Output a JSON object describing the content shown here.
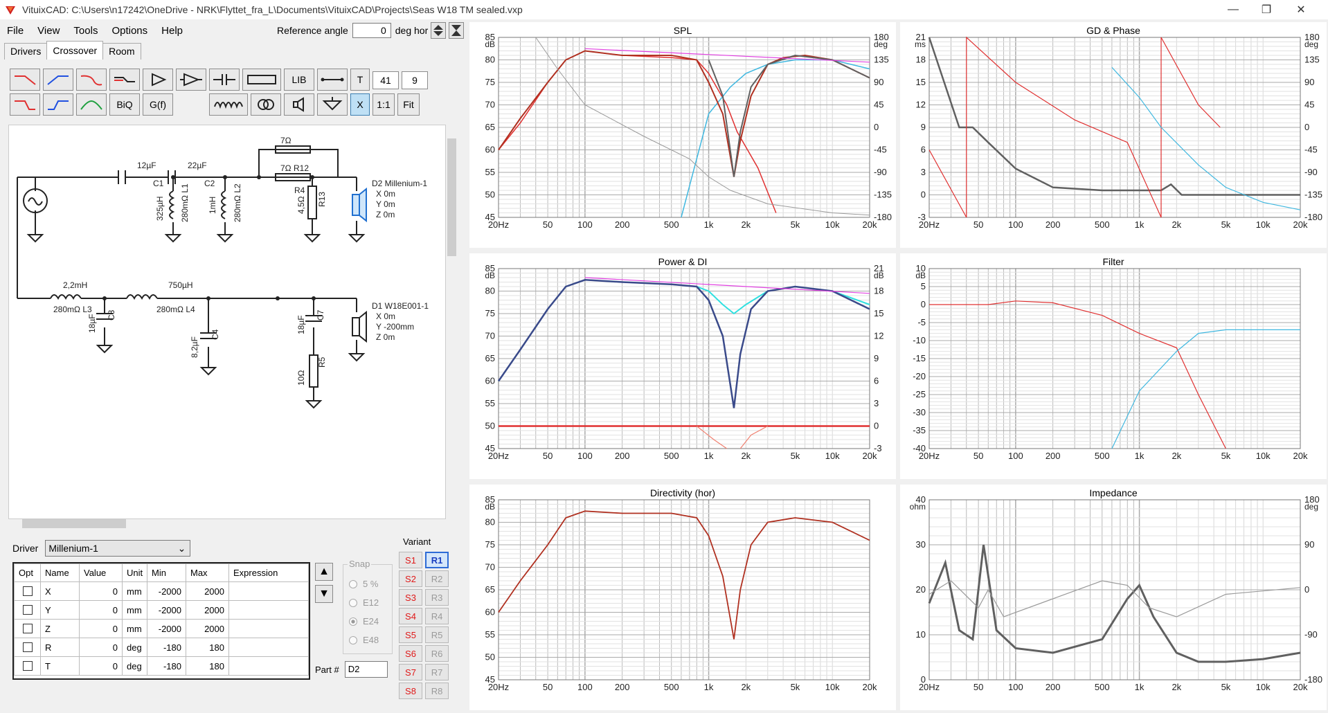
{
  "window": {
    "title": "VituixCAD: C:\\Users\\n17242\\OneDrive - NRK\\Flyttet_fra_L\\Documents\\VituixCAD\\Projects\\Seas W18 TM sealed.vxp"
  },
  "menu": [
    "File",
    "View",
    "Tools",
    "Options",
    "Help"
  ],
  "reference": {
    "label": "Reference angle",
    "value": "0",
    "unit": "deg hor"
  },
  "tabs": [
    "Drivers",
    "Crossover",
    "Room"
  ],
  "toolbar": {
    "lib": "LIB",
    "t": "T",
    "biq": "BiQ",
    "gf": "G(f)",
    "x": "X",
    "one": "1:1",
    "fit": "Fit",
    "n1": "41",
    "n2": "9"
  },
  "schematic": {
    "c1": "12µF",
    "c1n": "C1",
    "c2": "22µF",
    "c2n": "C2",
    "l1": "325µH",
    "l1n": "280mΩ L1",
    "l2": "1mH",
    "l2n": "280mΩ L2",
    "r_top": "7Ω",
    "r12": "7Ω R12",
    "r4": "R4",
    "r4v": "4,5Ω",
    "r13": "R13",
    "d2": "D2 Millenium-1",
    "d2x": "X 0m",
    "d2y": "Y 0m",
    "d2z": "Z 0m",
    "l3": "2,2mH",
    "l3n": "280mΩ L3",
    "c3": "C3",
    "c3v": "18µF",
    "l4": "750µH",
    "l4n": "280mΩ L4",
    "c4": "C4",
    "c4v": "8,2µF",
    "c7": "C7",
    "c7v": "18µF",
    "r5": "R5",
    "r5v": "10Ω",
    "d1": "D1 W18E001-1",
    "d1x": "X 0m",
    "d1y": "Y -200mm",
    "d1z": "Z 0m"
  },
  "driver": {
    "label": "Driver",
    "selected": "Millenium-1"
  },
  "table": {
    "headers": [
      "Opt",
      "Name",
      "Value",
      "Unit",
      "Min",
      "Max",
      "Expression"
    ],
    "rows": [
      {
        "name": "X",
        "value": "0",
        "unit": "mm",
        "min": "-2000",
        "max": "2000"
      },
      {
        "name": "Y",
        "value": "0",
        "unit": "mm",
        "min": "-2000",
        "max": "2000"
      },
      {
        "name": "Z",
        "value": "0",
        "unit": "mm",
        "min": "-2000",
        "max": "2000"
      },
      {
        "name": "R",
        "value": "0",
        "unit": "deg",
        "min": "-180",
        "max": "180"
      },
      {
        "name": "T",
        "value": "0",
        "unit": "deg",
        "min": "-180",
        "max": "180"
      }
    ]
  },
  "snap": {
    "label": "Snap",
    "options": [
      "5 %",
      "E12",
      "E24",
      "E48"
    ],
    "selected": "E24"
  },
  "part": {
    "label": "Part #",
    "value": "D2"
  },
  "variant": {
    "label": "Variant",
    "s": [
      "S1",
      "S2",
      "S3",
      "S4",
      "S5",
      "S6",
      "S7",
      "S8"
    ],
    "r": [
      "R1",
      "R2",
      "R3",
      "R4",
      "R5",
      "R6",
      "R7",
      "R8"
    ],
    "active": "R1"
  },
  "colors": {
    "red": "#e03030",
    "blue": "#40b8e0",
    "grey": "#606060",
    "magenta": "#e040e0",
    "darkred": "#b03020",
    "navy": "#3a4a8a"
  },
  "charts": [
    {
      "id": "spl",
      "title": "SPL",
      "yl_unit": "dB",
      "yr_unit": "deg",
      "yl": [
        "85",
        "80",
        "75",
        "70",
        "65",
        "60",
        "55",
        "50",
        "45"
      ],
      "yr": [
        "180",
        "135",
        "90",
        "45",
        "0",
        "-45",
        "-90",
        "-135",
        "-180"
      ]
    },
    {
      "id": "gd",
      "title": "GD & Phase",
      "yl_unit": "ms",
      "yr_unit": "deg",
      "yl": [
        "21",
        "18",
        "15",
        "12",
        "9",
        "6",
        "3",
        "0",
        "-3"
      ],
      "yr": [
        "180",
        "135",
        "90",
        "45",
        "0",
        "-45",
        "-90",
        "-135",
        "-180"
      ]
    },
    {
      "id": "pdi",
      "title": "Power & DI",
      "yl_unit": "dB",
      "yr_unit": "dB",
      "yl": [
        "85",
        "80",
        "75",
        "70",
        "65",
        "60",
        "55",
        "50",
        "45"
      ],
      "yr": [
        "21",
        "18",
        "15",
        "12",
        "9",
        "6",
        "3",
        "0",
        "-3"
      ]
    },
    {
      "id": "filter",
      "title": "Filter",
      "yl_unit": "dB",
      "yr_unit": "",
      "yl": [
        "10",
        "5",
        "0",
        "-5",
        "-10",
        "-15",
        "-20",
        "-25",
        "-30",
        "-35",
        "-40"
      ],
      "yr": []
    },
    {
      "id": "dir",
      "title": "Directivity (hor)",
      "yl_unit": "dB",
      "yr_unit": "",
      "yl": [
        "85",
        "80",
        "75",
        "70",
        "65",
        "60",
        "55",
        "50",
        "45"
      ],
      "yr": []
    },
    {
      "id": "imp",
      "title": "Impedance",
      "yl_unit": "ohm",
      "yr_unit": "deg",
      "yl": [
        "40",
        "30",
        "20",
        "10",
        "0"
      ],
      "yr": [
        "180",
        "90",
        "0",
        "-90",
        "-180"
      ]
    }
  ],
  "xticks": [
    "20Hz",
    "50",
    "100",
    "200",
    "500",
    "1k",
    "2k",
    "5k",
    "10k",
    "20k"
  ]
}
